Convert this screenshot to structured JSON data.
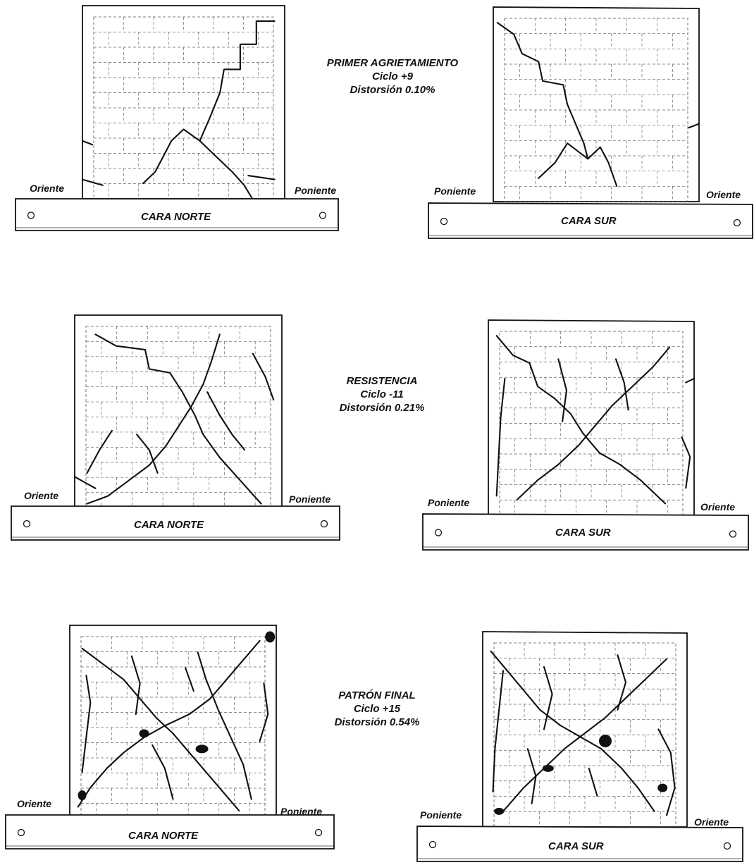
{
  "stages": [
    {
      "title": "PRIMER AGRIETAMIENTO",
      "cycle": "Ciclo +9",
      "drift": "Distorsión 0.10%"
    },
    {
      "title": "RESISTENCIA",
      "cycle": "Ciclo -11",
      "drift": "Distorsión 0.21%"
    },
    {
      "title": "PATRÓN FINAL",
      "cycle": "Ciclo +15",
      "drift": "Distorsión 0.54%"
    }
  ],
  "panels": [
    {
      "face": "CARA NORTE",
      "left_side": "Oriente",
      "right_side": "Poniente"
    },
    {
      "face": "CARA SUR",
      "left_side": "Poniente",
      "right_side": "Oriente"
    },
    {
      "face": "CARA NORTE",
      "left_side": "Oriente",
      "right_side": "Poniente"
    },
    {
      "face": "CARA SUR",
      "left_side": "Poniente",
      "right_side": "Oriente"
    },
    {
      "face": "CARA NORTE",
      "left_side": "Oriente",
      "right_side": "Poniente"
    },
    {
      "face": "CARA SUR",
      "left_side": "Poniente",
      "right_side": "Oriente"
    }
  ]
}
